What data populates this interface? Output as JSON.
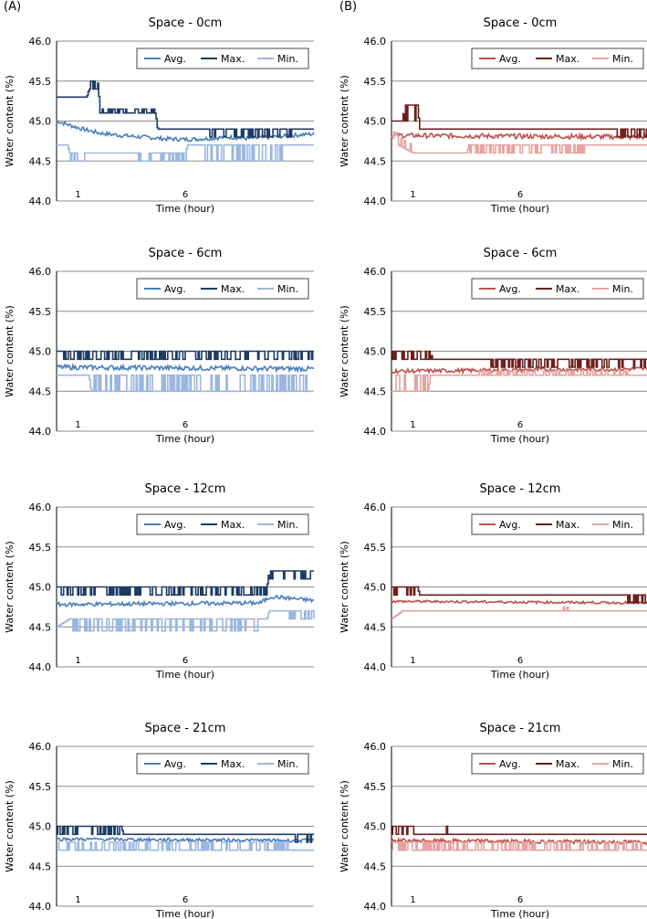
{
  "panels": {
    "a_label": "(A)",
    "b_label": "(B)"
  },
  "legend_labels": {
    "avg": "Avg.",
    "max": "Max.",
    "min": "Min."
  },
  "colors": {
    "A": {
      "avg": "#4a7ebb",
      "max": "#1f3b63",
      "min": "#9bb7df"
    },
    "B": {
      "avg": "#c0504d",
      "max": "#6b1f1f",
      "min": "#e6a3a1"
    }
  },
  "chart_data": [
    {
      "panel": "A",
      "type": "line",
      "title": "Space - 0cm",
      "xlabel": "Time (hour)",
      "ylabel": "Water content (%)",
      "ylim": [
        44.0,
        46.0
      ],
      "yticks": [
        "46.0",
        "45.5",
        "45.0",
        "44.5",
        "44.0"
      ],
      "xticks": [
        {
          "label": "1",
          "x": 1
        },
        {
          "label": "6",
          "x": 6
        }
      ],
      "xlim": [
        0,
        12
      ],
      "grid": true,
      "legend": "top-right",
      "series": [
        {
          "name": "Avg.",
          "segments": [
            [
              0,
              45.0
            ],
            [
              1.2,
              44.9
            ],
            [
              2,
              44.85
            ],
            [
              3,
              44.82
            ],
            [
              4,
              44.8
            ],
            [
              5,
              44.78
            ],
            [
              6,
              44.77
            ],
            [
              7,
              44.78
            ],
            [
              8,
              44.8
            ],
            [
              9,
              44.78
            ],
            [
              10,
              44.8
            ],
            [
              11,
              44.82
            ],
            [
              12,
              44.84
            ]
          ],
          "noise": 0.025
        },
        {
          "name": "Max.",
          "segments": [
            [
              0,
              45.3
            ],
            [
              1.4,
              45.3
            ],
            [
              1.5,
              45.4
            ],
            [
              1.9,
              45.4
            ],
            [
              2,
              45.1
            ],
            [
              4.6,
              45.1
            ],
            [
              4.7,
              44.9
            ],
            [
              12,
              44.9
            ]
          ],
          "noise": 0.0,
          "spikes": [
            [
              1.5,
              2,
              0.1
            ],
            [
              2.1,
              4.6,
              0.05
            ],
            [
              7,
              11,
              -0.1
            ]
          ]
        },
        {
          "name": "Min.",
          "segments": [
            [
              0,
              44.7
            ],
            [
              0.5,
              44.7
            ],
            [
              0.6,
              44.6
            ],
            [
              4,
              44.6
            ],
            [
              4.1,
              44.6
            ],
            [
              6,
              44.6
            ],
            [
              6.1,
              44.7
            ],
            [
              12,
              44.7
            ]
          ],
          "noise": 0.0,
          "spikes": [
            [
              0.6,
              1.5,
              -0.1
            ],
            [
              3.8,
              6,
              -0.1
            ],
            [
              6.8,
              10.5,
              -0.2
            ]
          ]
        }
      ]
    },
    {
      "panel": "B",
      "type": "line",
      "title": "Space - 0cm",
      "xlabel": "Time (hour)",
      "ylabel": "Water content (%)",
      "ylim": [
        44.0,
        46.0
      ],
      "yticks": [
        "46.0",
        "45.5",
        "45.0",
        "44.5",
        "44.0"
      ],
      "xticks": [
        {
          "label": "1",
          "x": 1
        },
        {
          "label": "6",
          "x": 6
        }
      ],
      "xlim": [
        0,
        12
      ],
      "grid": true,
      "legend": "top-right",
      "series": [
        {
          "name": "Avg.",
          "segments": [
            [
              0,
              44.82
            ],
            [
              12,
              44.8
            ]
          ],
          "noise": 0.03
        },
        {
          "name": "Max.",
          "segments": [
            [
              0,
              45.0
            ],
            [
              0.5,
              45.0
            ],
            [
              0.6,
              45.2
            ],
            [
              1.2,
              45.2
            ],
            [
              1.3,
              44.9
            ],
            [
              12,
              44.9
            ]
          ],
          "noise": 0.0,
          "spikes": [
            [
              0.5,
              1.2,
              -0.2
            ],
            [
              10.5,
              12,
              -0.1
            ]
          ]
        },
        {
          "name": "Min.",
          "segments": [
            [
              0,
              44.8
            ],
            [
              0.3,
              44.7
            ],
            [
              1.0,
              44.6
            ],
            [
              3.5,
              44.6
            ],
            [
              3.6,
              44.7
            ],
            [
              12,
              44.7
            ]
          ],
          "noise": 0.0,
          "spikes": [
            [
              3.5,
              9,
              -0.1
            ],
            [
              0.1,
              0.9,
              0.1
            ]
          ]
        }
      ]
    },
    {
      "panel": "A",
      "type": "line",
      "title": "Space - 6cm",
      "xlabel": "Time (hour)",
      "ylabel": "Water content (%)",
      "ylim": [
        44.0,
        46.0
      ],
      "yticks": [
        "46.0",
        "45.5",
        "45.0",
        "44.5",
        "44.0"
      ],
      "xticks": [
        {
          "label": "1",
          "x": 1
        },
        {
          "label": "6",
          "x": 6
        }
      ],
      "xlim": [
        0,
        12
      ],
      "grid": true,
      "legend": "top-right",
      "series": [
        {
          "name": "Avg.",
          "segments": [
            [
              0,
              44.8
            ],
            [
              12,
              44.78
            ]
          ],
          "noise": 0.03
        },
        {
          "name": "Max.",
          "segments": [
            [
              0,
              45.0
            ],
            [
              12,
              45.0
            ]
          ],
          "noise": 0.0,
          "spikes": [
            [
              0,
              12,
              -0.1
            ]
          ]
        },
        {
          "name": "Min.",
          "segments": [
            [
              0,
              44.7
            ],
            [
              1.5,
              44.7
            ],
            [
              1.6,
              44.5
            ],
            [
              12,
              44.5
            ]
          ],
          "noise": 0.0,
          "spikes": [
            [
              1.6,
              12,
              0.2
            ]
          ]
        }
      ]
    },
    {
      "panel": "B",
      "type": "line",
      "title": "Space - 6cm",
      "xlabel": "Time (hour)",
      "ylabel": "Water content (%)",
      "ylim": [
        44.0,
        46.0
      ],
      "yticks": [
        "46.0",
        "45.5",
        "45.0",
        "44.5",
        "44.0"
      ],
      "xticks": [
        {
          "label": "1",
          "x": 1
        },
        {
          "label": "6",
          "x": 6
        }
      ],
      "xlim": [
        0,
        12
      ],
      "grid": true,
      "legend": "top-right",
      "series": [
        {
          "name": "Avg.",
          "segments": [
            [
              0,
              44.75
            ],
            [
              12,
              44.78
            ]
          ],
          "noise": 0.025
        },
        {
          "name": "Max.",
          "segments": [
            [
              0,
              45.0
            ],
            [
              1.8,
              45.0
            ],
            [
              1.9,
              44.9
            ],
            [
              12,
              44.9
            ]
          ],
          "noise": 0.0,
          "spikes": [
            [
              0,
              1.8,
              -0.1
            ],
            [
              4.5,
              12,
              -0.1
            ]
          ]
        },
        {
          "name": "Min.",
          "segments": [
            [
              0,
              44.5
            ],
            [
              1.7,
              44.5
            ],
            [
              1.8,
              44.7
            ],
            [
              12,
              44.7
            ]
          ],
          "noise": 0.0,
          "spikes": [
            [
              0.2,
              1.7,
              0.2
            ],
            [
              4,
              11,
              0.05
            ]
          ]
        }
      ]
    },
    {
      "panel": "A",
      "type": "line",
      "title": "Space - 12cm",
      "xlabel": "Time (hour)",
      "ylabel": "Water content (%)",
      "ylim": [
        44.0,
        46.0
      ],
      "yticks": [
        "46.0",
        "45.5",
        "45.0",
        "44.5",
        "44.0"
      ],
      "xticks": [
        {
          "label": "1",
          "x": 1
        },
        {
          "label": "6",
          "x": 6
        }
      ],
      "xlim": [
        0,
        12
      ],
      "grid": true,
      "legend": "top-right",
      "series": [
        {
          "name": "Avg.",
          "segments": [
            [
              0,
              44.78
            ],
            [
              9.5,
              44.8
            ],
            [
              10,
              44.88
            ],
            [
              12,
              44.83
            ]
          ],
          "noise": 0.025
        },
        {
          "name": "Max.",
          "segments": [
            [
              0,
              45.0
            ],
            [
              9.8,
              45.0
            ],
            [
              9.9,
              45.2
            ],
            [
              12,
              45.2
            ]
          ],
          "noise": 0.0,
          "spikes": [
            [
              0,
              9.8,
              -0.1
            ],
            [
              9.9,
              12,
              -0.1
            ]
          ]
        },
        {
          "name": "Min.",
          "segments": [
            [
              0,
              44.5
            ],
            [
              0.6,
              44.6
            ],
            [
              9.8,
              44.6
            ],
            [
              9.9,
              44.7
            ],
            [
              12,
              44.7
            ]
          ],
          "noise": 0.0,
          "spikes": [
            [
              0.6,
              9.8,
              -0.15
            ],
            [
              10.5,
              12,
              -0.1
            ]
          ]
        }
      ]
    },
    {
      "panel": "B",
      "type": "line",
      "title": "Space - 12cm",
      "xlabel": "Time (hour)",
      "ylabel": "Water content (%)",
      "ylim": [
        44.0,
        46.0
      ],
      "yticks": [
        "46.0",
        "45.5",
        "45.0",
        "44.5",
        "44.0"
      ],
      "xticks": [
        {
          "label": "1",
          "x": 1
        },
        {
          "label": "6",
          "x": 6
        }
      ],
      "xlim": [
        0,
        12
      ],
      "grid": true,
      "legend": "top-right",
      "series": [
        {
          "name": "Avg.",
          "segments": [
            [
              0,
              44.82
            ],
            [
              12,
              44.8
            ]
          ],
          "noise": 0.015
        },
        {
          "name": "Max.",
          "segments": [
            [
              0,
              45.0
            ],
            [
              1.2,
              45.0
            ],
            [
              1.3,
              44.9
            ],
            [
              12,
              44.9
            ]
          ],
          "noise": 0.0,
          "spikes": [
            [
              0,
              1.2,
              -0.1
            ],
            [
              11,
              12,
              -0.1
            ]
          ]
        },
        {
          "name": "Min.",
          "segments": [
            [
              0,
              44.6
            ],
            [
              0.5,
              44.7
            ],
            [
              12,
              44.7
            ]
          ],
          "noise": 0.0,
          "spikes": [
            [
              8,
              8.2,
              0.05
            ]
          ]
        }
      ]
    },
    {
      "panel": "A",
      "type": "line",
      "title": "Space - 21cm",
      "xlabel": "Time (hour)",
      "ylabel": "Water content (%)",
      "ylim": [
        44.0,
        46.0
      ],
      "yticks": [
        "46.0",
        "45.5",
        "45.0",
        "44.5",
        "44.0"
      ],
      "xticks": [
        {
          "label": "1",
          "x": 1
        },
        {
          "label": "6",
          "x": 6
        }
      ],
      "xlim": [
        0,
        12
      ],
      "grid": true,
      "legend": "top-right",
      "series": [
        {
          "name": "Avg.",
          "segments": [
            [
              0,
              44.84
            ],
            [
              12,
              44.82
            ]
          ],
          "noise": 0.02
        },
        {
          "name": "Max.",
          "segments": [
            [
              0,
              45.0
            ],
            [
              3,
              45.0
            ],
            [
              3.1,
              44.9
            ],
            [
              12,
              44.9
            ]
          ],
          "noise": 0.0,
          "spikes": [
            [
              0,
              3,
              -0.1
            ],
            [
              11,
              12,
              -0.1
            ]
          ]
        },
        {
          "name": "Min.",
          "segments": [
            [
              0,
              44.7
            ],
            [
              12,
              44.7
            ]
          ],
          "noise": 0.0,
          "spikes": [
            [
              0,
              11,
              0.1
            ]
          ]
        }
      ]
    },
    {
      "panel": "B",
      "type": "line",
      "title": "Space - 21cm",
      "xlabel": "Time (hour)",
      "ylabel": "Water content (%)",
      "ylim": [
        44.0,
        46.0
      ],
      "yticks": [
        "46.0",
        "45.5",
        "45.0",
        "44.5",
        "44.0"
      ],
      "xticks": [
        {
          "label": "1",
          "x": 1
        },
        {
          "label": "6",
          "x": 6
        }
      ],
      "xlim": [
        0,
        12
      ],
      "grid": true,
      "legend": "top-right",
      "series": [
        {
          "name": "Avg.",
          "segments": [
            [
              0,
              44.82
            ],
            [
              12,
              44.8
            ]
          ],
          "noise": 0.025
        },
        {
          "name": "Max.",
          "segments": [
            [
              0,
              44.9
            ],
            [
              12,
              44.9
            ]
          ],
          "noise": 0.0,
          "spikes": [
            [
              0,
              1,
              0.1
            ],
            [
              2.5,
              2.6,
              0.1
            ],
            [
              11.5,
              11.6,
              0.1
            ]
          ]
        },
        {
          "name": "Min.",
          "segments": [
            [
              0,
              44.7
            ],
            [
              12,
              44.7
            ]
          ],
          "noise": 0.0,
          "spikes": [
            [
              0,
              12,
              0.1
            ]
          ]
        }
      ]
    }
  ]
}
